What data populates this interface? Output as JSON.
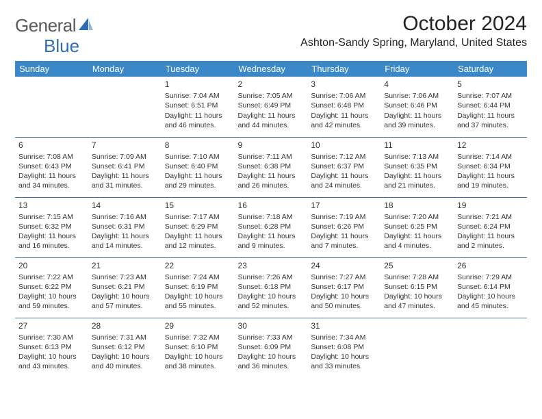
{
  "logo": {
    "text_general": "General",
    "text_blue": "Blue"
  },
  "title": "October 2024",
  "location": "Ashton-Sandy Spring, Maryland, United States",
  "colors": {
    "header_bg": "#3b87c8",
    "header_text": "#ffffff",
    "row_border": "#3b6fa0",
    "logo_gray": "#5a5a5a",
    "logo_blue": "#2f6fb0"
  },
  "day_headers": [
    "Sunday",
    "Monday",
    "Tuesday",
    "Wednesday",
    "Thursday",
    "Friday",
    "Saturday"
  ],
  "weeks": [
    [
      null,
      null,
      {
        "n": "1",
        "sr": "Sunrise: 7:04 AM",
        "ss": "Sunset: 6:51 PM",
        "d1": "Daylight: 11 hours",
        "d2": "and 46 minutes."
      },
      {
        "n": "2",
        "sr": "Sunrise: 7:05 AM",
        "ss": "Sunset: 6:49 PM",
        "d1": "Daylight: 11 hours",
        "d2": "and 44 minutes."
      },
      {
        "n": "3",
        "sr": "Sunrise: 7:06 AM",
        "ss": "Sunset: 6:48 PM",
        "d1": "Daylight: 11 hours",
        "d2": "and 42 minutes."
      },
      {
        "n": "4",
        "sr": "Sunrise: 7:06 AM",
        "ss": "Sunset: 6:46 PM",
        "d1": "Daylight: 11 hours",
        "d2": "and 39 minutes."
      },
      {
        "n": "5",
        "sr": "Sunrise: 7:07 AM",
        "ss": "Sunset: 6:44 PM",
        "d1": "Daylight: 11 hours",
        "d2": "and 37 minutes."
      }
    ],
    [
      {
        "n": "6",
        "sr": "Sunrise: 7:08 AM",
        "ss": "Sunset: 6:43 PM",
        "d1": "Daylight: 11 hours",
        "d2": "and 34 minutes."
      },
      {
        "n": "7",
        "sr": "Sunrise: 7:09 AM",
        "ss": "Sunset: 6:41 PM",
        "d1": "Daylight: 11 hours",
        "d2": "and 31 minutes."
      },
      {
        "n": "8",
        "sr": "Sunrise: 7:10 AM",
        "ss": "Sunset: 6:40 PM",
        "d1": "Daylight: 11 hours",
        "d2": "and 29 minutes."
      },
      {
        "n": "9",
        "sr": "Sunrise: 7:11 AM",
        "ss": "Sunset: 6:38 PM",
        "d1": "Daylight: 11 hours",
        "d2": "and 26 minutes."
      },
      {
        "n": "10",
        "sr": "Sunrise: 7:12 AM",
        "ss": "Sunset: 6:37 PM",
        "d1": "Daylight: 11 hours",
        "d2": "and 24 minutes."
      },
      {
        "n": "11",
        "sr": "Sunrise: 7:13 AM",
        "ss": "Sunset: 6:35 PM",
        "d1": "Daylight: 11 hours",
        "d2": "and 21 minutes."
      },
      {
        "n": "12",
        "sr": "Sunrise: 7:14 AM",
        "ss": "Sunset: 6:34 PM",
        "d1": "Daylight: 11 hours",
        "d2": "and 19 minutes."
      }
    ],
    [
      {
        "n": "13",
        "sr": "Sunrise: 7:15 AM",
        "ss": "Sunset: 6:32 PM",
        "d1": "Daylight: 11 hours",
        "d2": "and 16 minutes."
      },
      {
        "n": "14",
        "sr": "Sunrise: 7:16 AM",
        "ss": "Sunset: 6:31 PM",
        "d1": "Daylight: 11 hours",
        "d2": "and 14 minutes."
      },
      {
        "n": "15",
        "sr": "Sunrise: 7:17 AM",
        "ss": "Sunset: 6:29 PM",
        "d1": "Daylight: 11 hours",
        "d2": "and 12 minutes."
      },
      {
        "n": "16",
        "sr": "Sunrise: 7:18 AM",
        "ss": "Sunset: 6:28 PM",
        "d1": "Daylight: 11 hours",
        "d2": "and 9 minutes."
      },
      {
        "n": "17",
        "sr": "Sunrise: 7:19 AM",
        "ss": "Sunset: 6:26 PM",
        "d1": "Daylight: 11 hours",
        "d2": "and 7 minutes."
      },
      {
        "n": "18",
        "sr": "Sunrise: 7:20 AM",
        "ss": "Sunset: 6:25 PM",
        "d1": "Daylight: 11 hours",
        "d2": "and 4 minutes."
      },
      {
        "n": "19",
        "sr": "Sunrise: 7:21 AM",
        "ss": "Sunset: 6:24 PM",
        "d1": "Daylight: 11 hours",
        "d2": "and 2 minutes."
      }
    ],
    [
      {
        "n": "20",
        "sr": "Sunrise: 7:22 AM",
        "ss": "Sunset: 6:22 PM",
        "d1": "Daylight: 10 hours",
        "d2": "and 59 minutes."
      },
      {
        "n": "21",
        "sr": "Sunrise: 7:23 AM",
        "ss": "Sunset: 6:21 PM",
        "d1": "Daylight: 10 hours",
        "d2": "and 57 minutes."
      },
      {
        "n": "22",
        "sr": "Sunrise: 7:24 AM",
        "ss": "Sunset: 6:19 PM",
        "d1": "Daylight: 10 hours",
        "d2": "and 55 minutes."
      },
      {
        "n": "23",
        "sr": "Sunrise: 7:26 AM",
        "ss": "Sunset: 6:18 PM",
        "d1": "Daylight: 10 hours",
        "d2": "and 52 minutes."
      },
      {
        "n": "24",
        "sr": "Sunrise: 7:27 AM",
        "ss": "Sunset: 6:17 PM",
        "d1": "Daylight: 10 hours",
        "d2": "and 50 minutes."
      },
      {
        "n": "25",
        "sr": "Sunrise: 7:28 AM",
        "ss": "Sunset: 6:15 PM",
        "d1": "Daylight: 10 hours",
        "d2": "and 47 minutes."
      },
      {
        "n": "26",
        "sr": "Sunrise: 7:29 AM",
        "ss": "Sunset: 6:14 PM",
        "d1": "Daylight: 10 hours",
        "d2": "and 45 minutes."
      }
    ],
    [
      {
        "n": "27",
        "sr": "Sunrise: 7:30 AM",
        "ss": "Sunset: 6:13 PM",
        "d1": "Daylight: 10 hours",
        "d2": "and 43 minutes."
      },
      {
        "n": "28",
        "sr": "Sunrise: 7:31 AM",
        "ss": "Sunset: 6:12 PM",
        "d1": "Daylight: 10 hours",
        "d2": "and 40 minutes."
      },
      {
        "n": "29",
        "sr": "Sunrise: 7:32 AM",
        "ss": "Sunset: 6:10 PM",
        "d1": "Daylight: 10 hours",
        "d2": "and 38 minutes."
      },
      {
        "n": "30",
        "sr": "Sunrise: 7:33 AM",
        "ss": "Sunset: 6:09 PM",
        "d1": "Daylight: 10 hours",
        "d2": "and 36 minutes."
      },
      {
        "n": "31",
        "sr": "Sunrise: 7:34 AM",
        "ss": "Sunset: 6:08 PM",
        "d1": "Daylight: 10 hours",
        "d2": "and 33 minutes."
      },
      null,
      null
    ]
  ]
}
